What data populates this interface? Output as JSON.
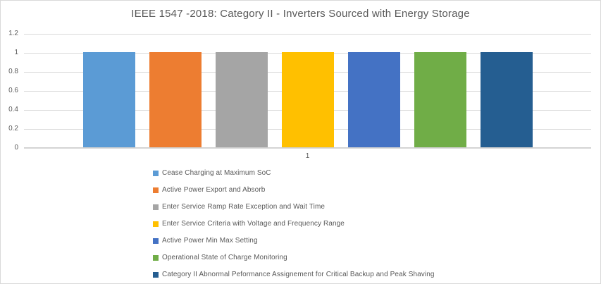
{
  "window": {
    "background": "#ffffff",
    "border_color": "#d9d9d9"
  },
  "text_colors": {
    "title": "#595959",
    "axis_labels": "#595959",
    "legend": "#595959",
    "gridline": "#d9d9d9"
  },
  "chart_data": {
    "type": "bar",
    "title": "IEEE 1547 -2018: Category II - Inverters Sourced with Energy Storage",
    "xlabel": "",
    "ylabel": "",
    "categories": [
      "1"
    ],
    "series": [
      {
        "name": "Cease Charging at Maximum SoC",
        "values": [
          1
        ],
        "color": "#5B9BD5"
      },
      {
        "name": "Active Power Export and Absorb",
        "values": [
          1
        ],
        "color": "#ED7D31"
      },
      {
        "name": "Enter Service Ramp Rate Exception and Wait Time",
        "values": [
          1
        ],
        "color": "#A5A5A5"
      },
      {
        "name": "Enter Service Criteria with Voltage and Frequency Range",
        "values": [
          1
        ],
        "color": "#FFC000"
      },
      {
        "name": "Active Power Min Max Setting",
        "values": [
          1
        ],
        "color": "#4472C4"
      },
      {
        "name": "Operational State of Charge Monitoring",
        "values": [
          1
        ],
        "color": "#70AD47"
      },
      {
        "name": "Category II Abnormal Peformance Assignement for Critical Backup and Peak Shaving",
        "values": [
          1
        ],
        "color": "#255E91"
      }
    ],
    "yticks": [
      0,
      0.2,
      0.4,
      0.6,
      0.8,
      1,
      1.2
    ],
    "ylim": [
      0,
      1.2
    ],
    "grid": true,
    "legend_position": "bottom-left"
  }
}
